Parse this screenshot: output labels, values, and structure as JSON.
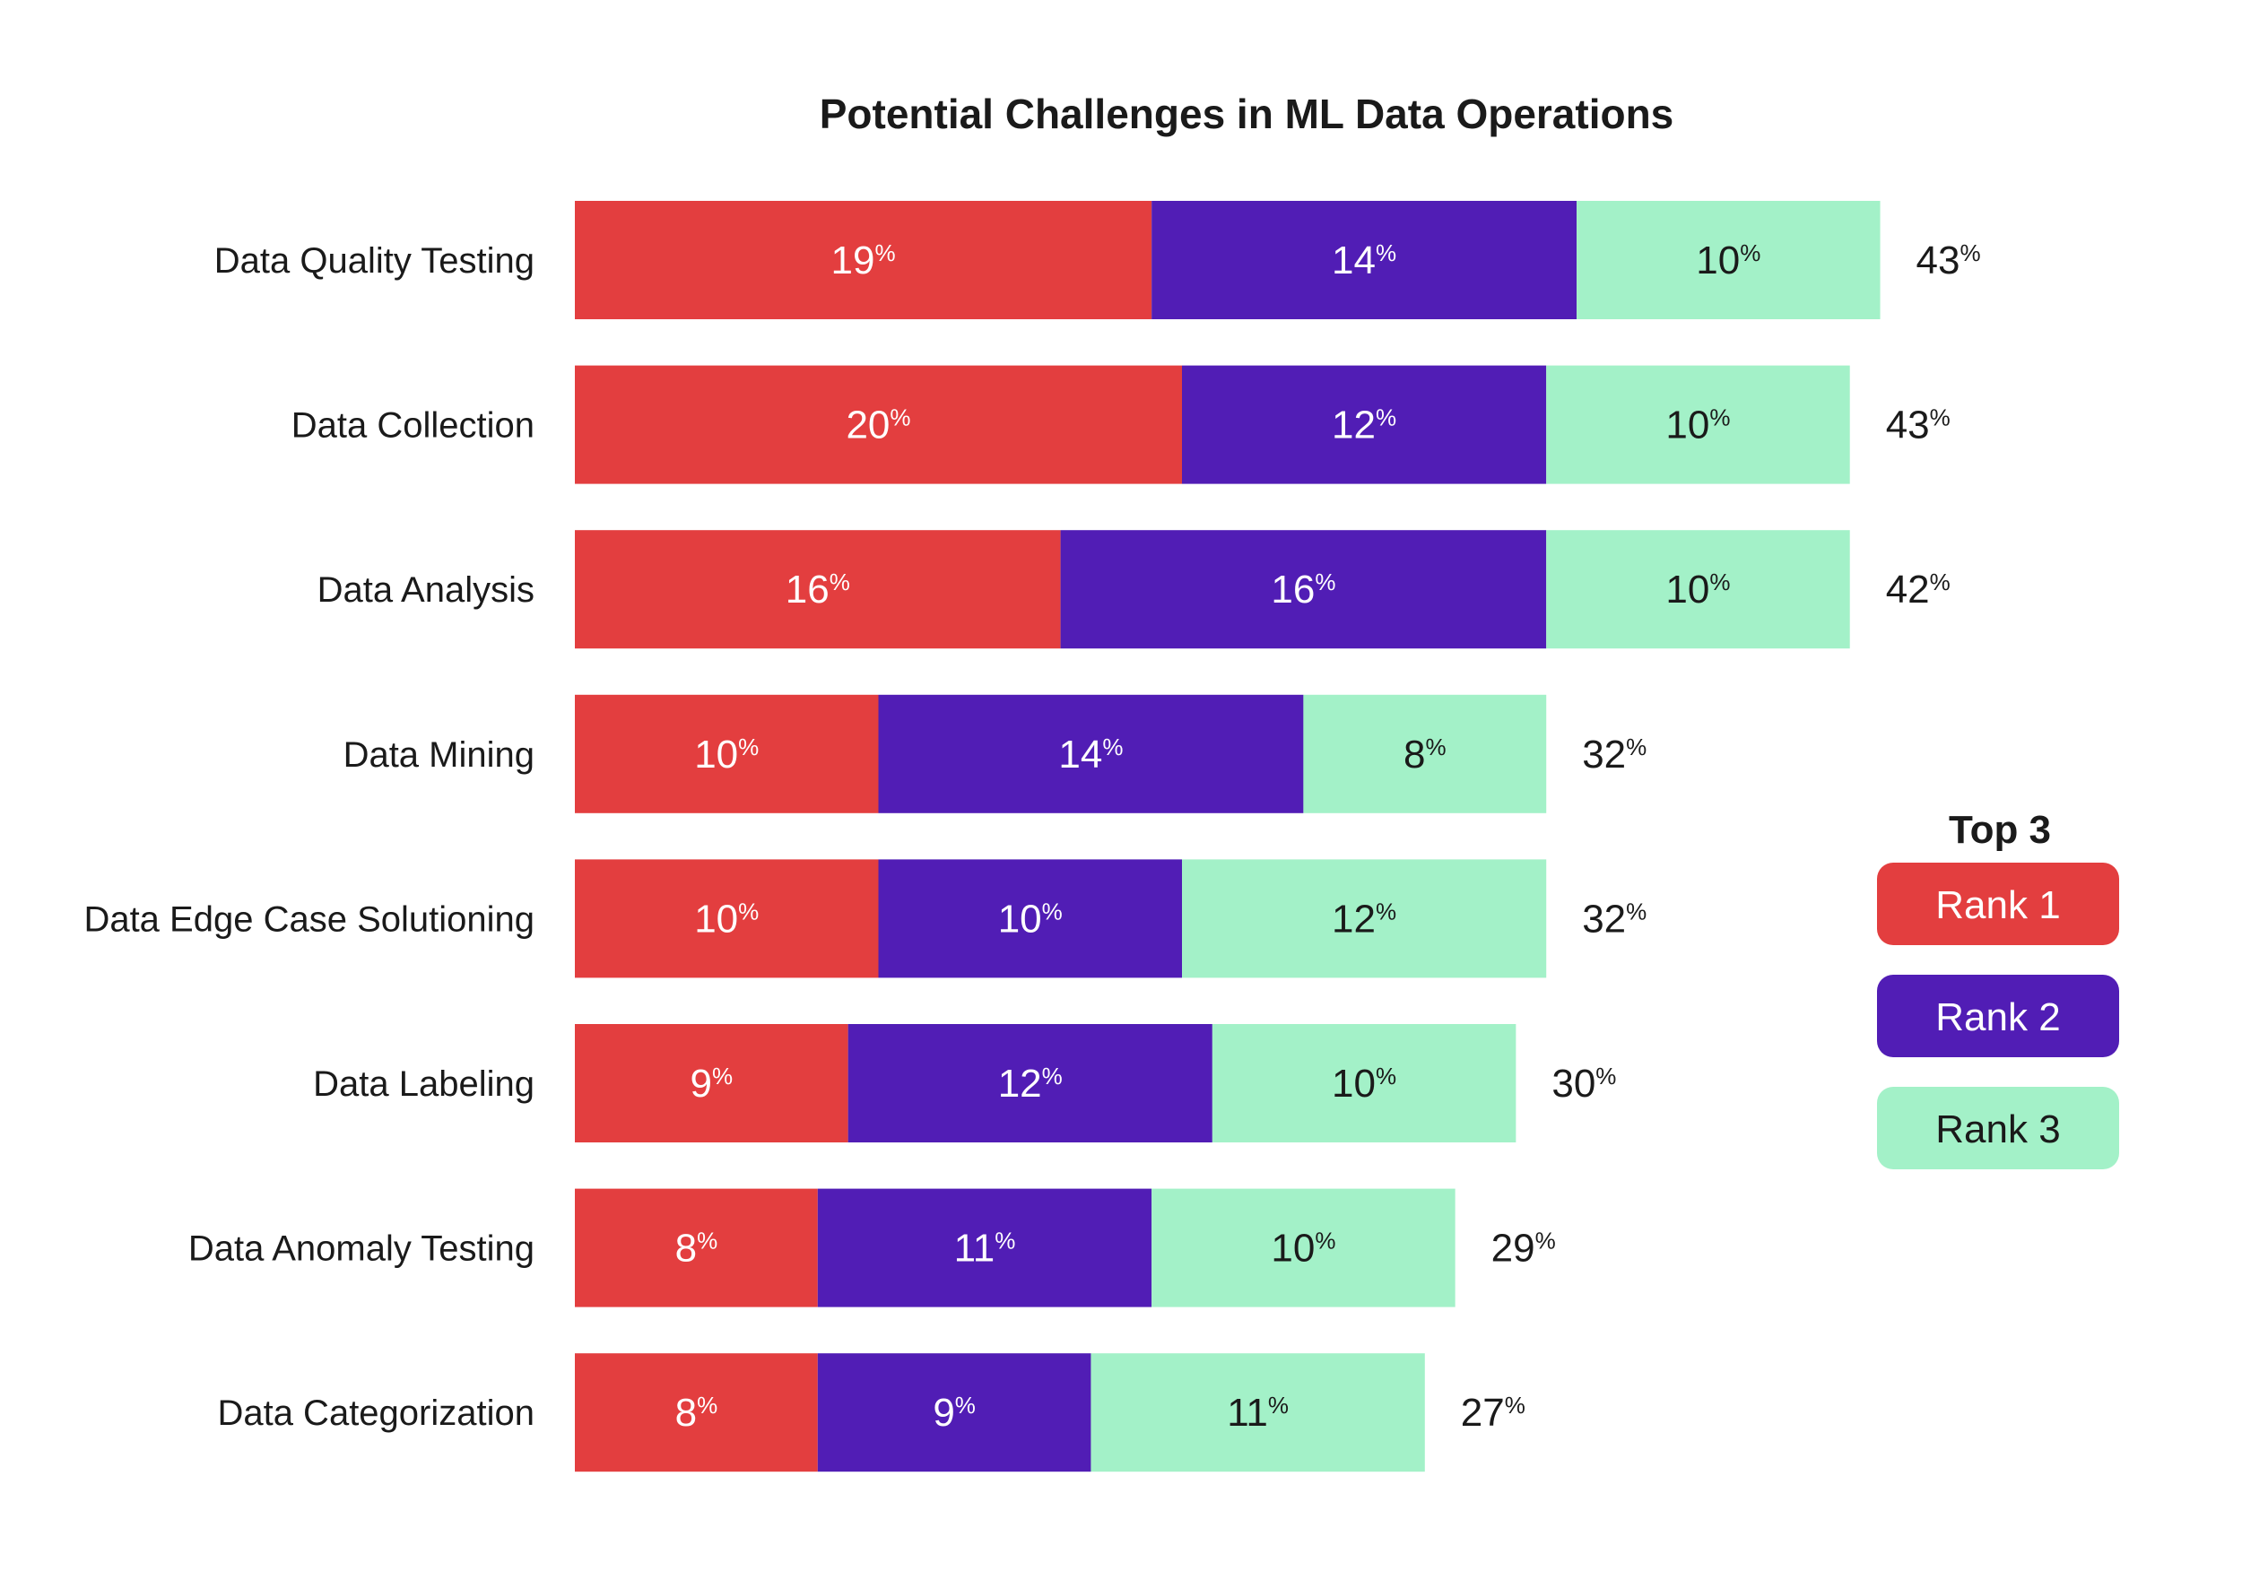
{
  "chart_data": {
    "type": "bar",
    "orientation": "horizontal",
    "stacked": true,
    "title": "Potential Challenges in ML Data Operations",
    "categories": [
      "Data Quality Testing",
      "Data Collection",
      "Data Analysis",
      "Data Mining",
      "Data Edge Case Solutioning",
      "Data Labeling",
      "Data Anomaly Testing",
      "Data Categorization"
    ],
    "series": [
      {
        "name": "Rank 1",
        "color": "#e33e3f",
        "text_color": "#ffffff",
        "values": [
          19,
          20,
          16,
          10,
          10,
          9,
          8,
          8
        ]
      },
      {
        "name": "Rank 2",
        "color": "#511db5",
        "text_color": "#ffffff",
        "values": [
          14,
          12,
          16,
          14,
          10,
          12,
          11,
          9
        ]
      },
      {
        "name": "Rank 3",
        "color": "#a3f1c8",
        "text_color": "#1a1a1a",
        "values": [
          10,
          10,
          10,
          8,
          12,
          10,
          10,
          11
        ]
      }
    ],
    "totals": [
      43,
      43,
      42,
      32,
      32,
      30,
      29,
      27
    ],
    "unit": "%",
    "xlim": [
      0,
      45
    ],
    "grid": false,
    "legend": {
      "title": "Top 3",
      "position": "right"
    }
  }
}
